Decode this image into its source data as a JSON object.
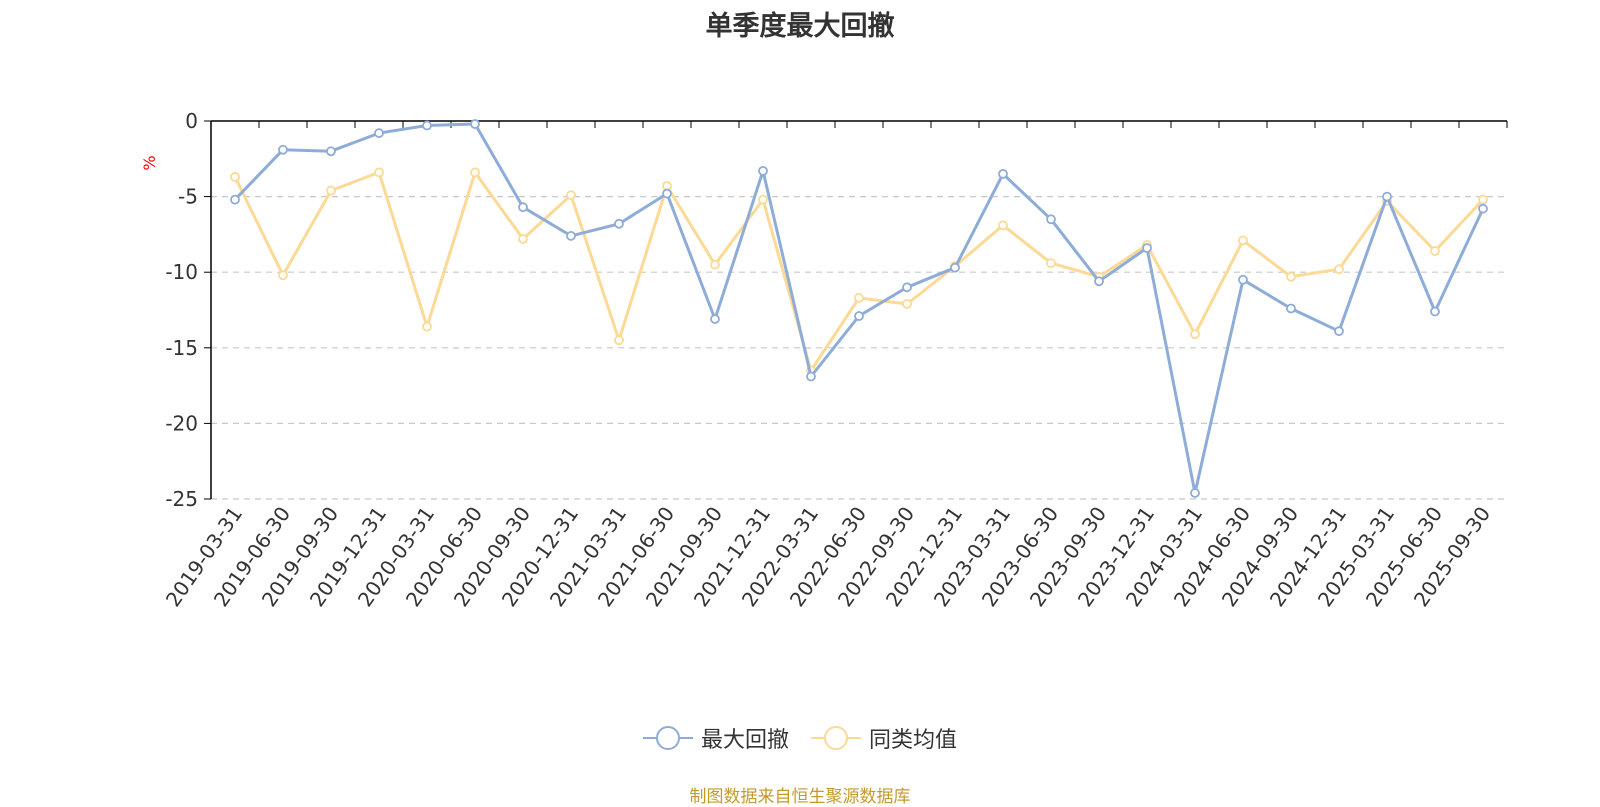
{
  "colors": {
    "series1": "#8eacd8",
    "series2": "#fcd995",
    "axis": "#000000",
    "grid": "#c8c8c8",
    "unit": "#ff0000",
    "text": "#333333",
    "source": "#c59a2a"
  },
  "chart_data": {
    "type": "line",
    "title": "单季度最大回撤",
    "ylabel": "%",
    "xlabel": "",
    "ylim": [
      -25,
      0
    ],
    "yticks": [
      0,
      -5,
      -10,
      -15,
      -20,
      -25
    ],
    "grid": "horizontal dashed",
    "legend": "bottom-center",
    "categories": [
      "2019-03-31",
      "2019-06-30",
      "2019-09-30",
      "2019-12-31",
      "2020-03-31",
      "2020-06-30",
      "2020-09-30",
      "2020-12-31",
      "2021-03-31",
      "2021-06-30",
      "2021-09-30",
      "2021-12-31",
      "2022-03-31",
      "2022-06-30",
      "2022-09-30",
      "2022-12-31",
      "2023-03-31",
      "2023-06-30",
      "2023-09-30",
      "2023-12-31",
      "2024-03-31",
      "2024-06-30",
      "2024-09-30",
      "2024-12-31",
      "2025-03-31",
      "2025-06-30",
      "2025-09-30"
    ],
    "series": [
      {
        "name": "最大回撤",
        "values": [
          -5.2,
          -1.9,
          -2.0,
          -0.8,
          -0.3,
          -0.2,
          -5.7,
          -7.6,
          -6.8,
          -4.8,
          -13.1,
          -3.3,
          -16.9,
          -12.9,
          -11.0,
          -9.7,
          -3.5,
          -6.5,
          -10.6,
          -8.4,
          -24.6,
          -10.5,
          -12.4,
          -13.9,
          -5.0,
          -12.6,
          -5.8
        ]
      },
      {
        "name": "同类均值",
        "values": [
          -3.7,
          -10.2,
          -4.6,
          -3.4,
          -13.6,
          -3.4,
          -7.8,
          -4.9,
          -14.5,
          -4.3,
          -9.5,
          -5.2,
          -16.5,
          -11.7,
          -12.1,
          -9.6,
          -6.9,
          -9.4,
          -10.3,
          -8.2,
          -14.1,
          -7.9,
          -10.3,
          -9.8,
          -5.3,
          -8.6,
          -5.2
        ]
      }
    ]
  },
  "source_text": "制图数据来自恒生聚源数据库"
}
